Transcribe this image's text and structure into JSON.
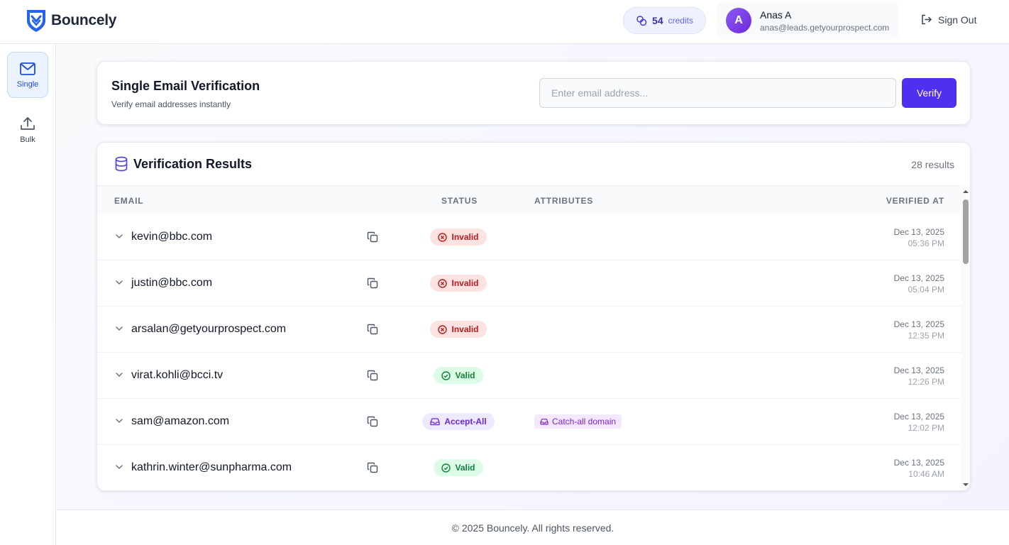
{
  "brand": {
    "name": "Bouncely"
  },
  "header": {
    "credits_value": "54",
    "credits_label": "credits",
    "user": {
      "initial": "A",
      "name": "Anas A",
      "email": "anas@leads.getyourprospect.com"
    },
    "sign_out": "Sign Out"
  },
  "sidebar": {
    "items": [
      {
        "label": "Single",
        "icon": "mail-icon",
        "active": true
      },
      {
        "label": "Bulk",
        "icon": "upload-icon",
        "active": false
      }
    ]
  },
  "verify": {
    "title": "Single Email Verification",
    "subtitle": "Verify email addresses instantly",
    "input_placeholder": "Enter email address...",
    "input_value": "",
    "button_label": "Verify"
  },
  "results": {
    "title": "Verification Results",
    "count": "28 results",
    "columns": {
      "email": "Email",
      "status": "Status",
      "attributes": "Attributes",
      "verified_at": "Verified At"
    },
    "rows": [
      {
        "email": "kevin@bbc.com",
        "status": "Invalid",
        "attribute": "",
        "date": "Dec 13, 2025",
        "time": "05:36 PM"
      },
      {
        "email": "justin@bbc.com",
        "status": "Invalid",
        "attribute": "",
        "date": "Dec 13, 2025",
        "time": "05:04 PM"
      },
      {
        "email": "arsalan@getyourprospect.com",
        "status": "Invalid",
        "attribute": "",
        "date": "Dec 13, 2025",
        "time": "12:35 PM"
      },
      {
        "email": "virat.kohli@bcci.tv",
        "status": "Valid",
        "attribute": "",
        "date": "Dec 13, 2025",
        "time": "12:26 PM"
      },
      {
        "email": "sam@amazon.com",
        "status": "Accept-All",
        "attribute": "Catch-all domain",
        "date": "Dec 13, 2025",
        "time": "12:02 PM"
      },
      {
        "email": "kathrin.winter@sunpharma.com",
        "status": "Valid",
        "attribute": "",
        "date": "Dec 13, 2025",
        "time": "10:46 AM"
      }
    ]
  },
  "footer": {
    "text": "© 2025 Bouncely. All rights reserved."
  },
  "colors": {
    "accent": "#4f2ff0",
    "invalid": "#b91c1c",
    "valid": "#15803d",
    "accept_all": "#6d28d9"
  }
}
